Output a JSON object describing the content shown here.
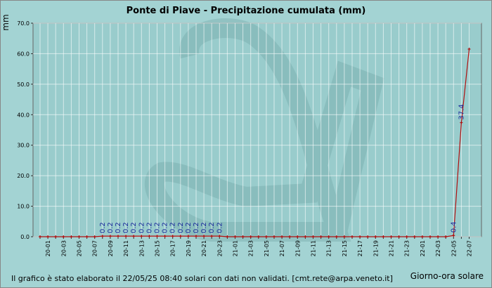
{
  "chart_data": {
    "type": "line",
    "title": "Ponte di Piave - Precipitazione cumulata (mm)",
    "y_label": "mm",
    "x_label": "Giorno-ora solare",
    "footer": "Il grafico è stato elaborato il 22/05/25 08:40 solari con dati non validati. [cmt.rete@arpa.veneto.it]",
    "categories": [
      null,
      "20-01",
      null,
      "20-03",
      null,
      "20-05",
      null,
      "20-07",
      null,
      "20-09",
      null,
      "20-11",
      null,
      "20-13",
      null,
      "20-15",
      null,
      "20-17",
      null,
      "20-19",
      null,
      "20-21",
      null,
      "20-23",
      null,
      "21-01",
      null,
      "21-03",
      null,
      "21-05",
      null,
      "21-07",
      null,
      "21-09",
      null,
      "21-11",
      null,
      "21-13",
      null,
      "21-15",
      null,
      "21-17",
      null,
      "21-19",
      null,
      "21-21",
      null,
      "21-23",
      null,
      "22-01",
      null,
      "22-03",
      null,
      "22-05",
      null,
      "22-07"
    ],
    "series": [
      {
        "name": "Precipitazione cumulata",
        "color": "#b01010",
        "values": [
          0,
          0,
          0,
          0,
          0,
          0,
          0,
          0,
          0.2,
          0.2,
          0.2,
          0.2,
          0.2,
          0.2,
          0.2,
          0.2,
          0.2,
          0.2,
          0.2,
          0.2,
          0.2,
          0.2,
          0.2,
          0.2,
          0,
          0,
          0,
          0,
          0,
          0,
          0,
          0,
          0,
          0,
          0,
          0,
          0,
          0,
          0,
          0,
          0,
          0,
          0,
          0,
          0,
          0,
          0,
          0,
          0,
          0,
          0,
          0,
          0,
          0.4,
          37.4,
          61.5
        ],
        "value_labels": [
          null,
          null,
          null,
          null,
          null,
          null,
          null,
          null,
          "0.2",
          "0.2",
          "0.2",
          "0.2",
          "0.2",
          "0.2",
          "0.2",
          "0.2",
          "0.2",
          "0.2",
          "0.2",
          "0.2",
          "0.2",
          "0.2",
          "0.2",
          "0.2",
          null,
          null,
          null,
          null,
          null,
          null,
          null,
          null,
          null,
          null,
          null,
          null,
          null,
          null,
          null,
          null,
          null,
          null,
          null,
          null,
          null,
          null,
          null,
          null,
          null,
          null,
          null,
          null,
          null,
          "0.4",
          "37.4",
          null
        ]
      }
    ],
    "ylim": [
      0,
      70
    ],
    "yticks": [
      {
        "value": 0,
        "label": "0.0"
      },
      {
        "value": 10,
        "label": "10.0"
      },
      {
        "value": 20,
        "label": "20.0"
      },
      {
        "value": 30,
        "label": "30.0"
      },
      {
        "value": 40,
        "label": "40.0"
      },
      {
        "value": 50,
        "label": "50.0"
      },
      {
        "value": 60,
        "label": "60.0"
      },
      {
        "value": 70,
        "label": "70.0"
      }
    ],
    "grid": true
  }
}
